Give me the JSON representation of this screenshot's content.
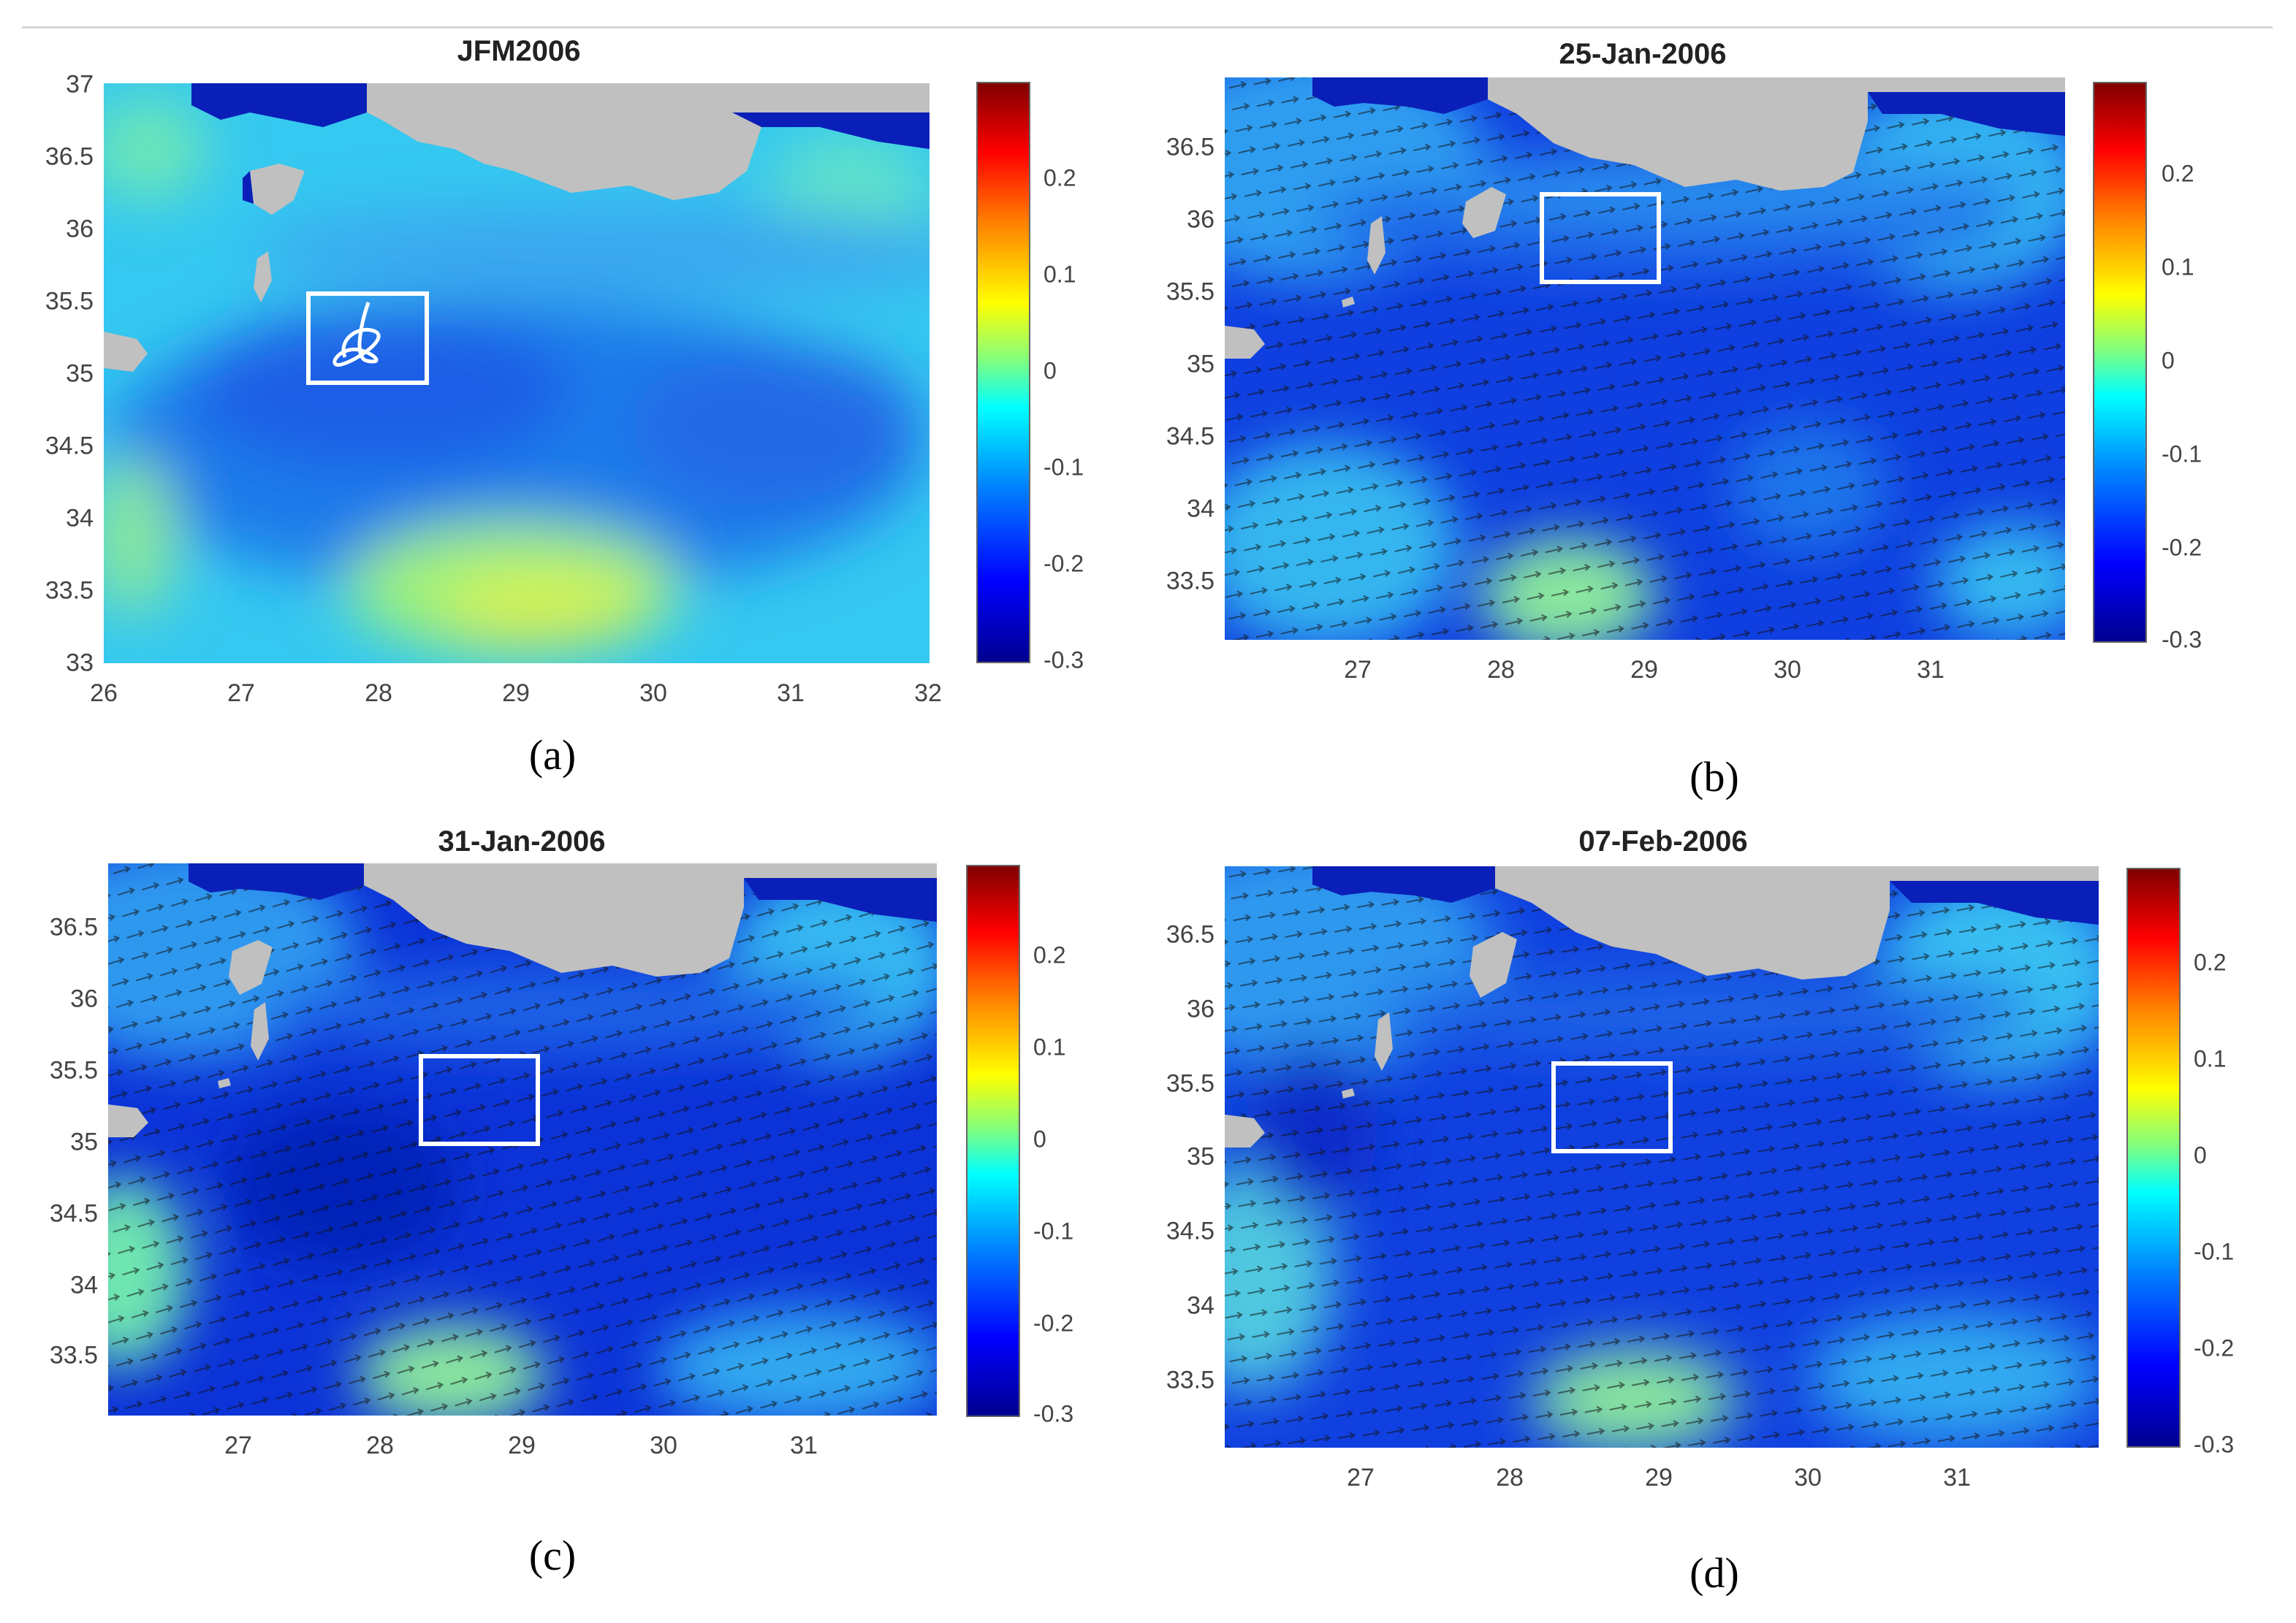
{
  "panels": [
    {
      "id": "a",
      "title": "JFM2006",
      "caption": "(a)",
      "show_vectors": false,
      "show_track": true,
      "y_ticks": [
        "37",
        "36.5",
        "36",
        "35.5",
        "35",
        "34.5",
        "34",
        "33.5",
        "33"
      ],
      "x_ticks": [
        "26",
        "27",
        "28",
        "29",
        "30",
        "31",
        "32"
      ],
      "colorbar_ticks": [
        "0.2",
        "0.1",
        "0",
        "-0.1",
        "-0.2",
        "-0.3"
      ]
    },
    {
      "id": "b",
      "title": "25-Jan-2006",
      "caption": "(b)",
      "show_vectors": true,
      "show_track": false,
      "y_ticks": [
        "36.5",
        "36",
        "35.5",
        "35",
        "34.5",
        "34",
        "33.5"
      ],
      "x_ticks": [
        "27",
        "28",
        "29",
        "30",
        "31"
      ],
      "colorbar_ticks": [
        "0.2",
        "0.1",
        "0",
        "-0.1",
        "-0.2",
        "-0.3"
      ]
    },
    {
      "id": "c",
      "title": "31-Jan-2006",
      "caption": "(c)",
      "show_vectors": true,
      "show_track": false,
      "y_ticks": [
        "36.5",
        "36",
        "35.5",
        "35",
        "34.5",
        "34",
        "33.5"
      ],
      "x_ticks": [
        "27",
        "28",
        "29",
        "30",
        "31"
      ],
      "colorbar_ticks": [
        "0.2",
        "0.1",
        "0",
        "-0.1",
        "-0.2",
        "-0.3"
      ]
    },
    {
      "id": "d",
      "title": "07-Feb-2006",
      "caption": "(d)",
      "show_vectors": true,
      "show_track": false,
      "y_ticks": [
        "36.5",
        "36",
        "35.5",
        "35",
        "34.5",
        "34",
        "33.5"
      ],
      "x_ticks": [
        "27",
        "28",
        "29",
        "30",
        "31"
      ],
      "colorbar_ticks": [
        "0.2",
        "0.1",
        "0",
        "-0.1",
        "-0.2",
        "-0.3"
      ]
    }
  ],
  "colors": {
    "land": "#c0c0c0",
    "deep_blue": "#0a1fb8",
    "box": "#ffffff"
  }
}
